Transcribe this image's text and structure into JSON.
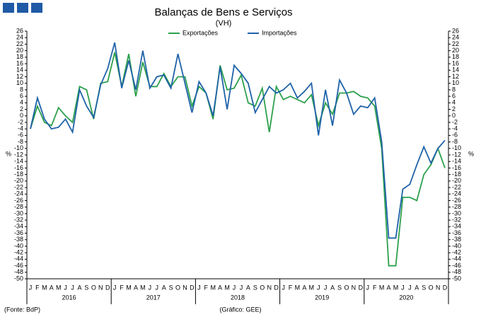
{
  "chart_data": {
    "type": "line",
    "title": "Balanças de Bens e Serviços",
    "subtitle": "(VH)",
    "ylabel": "%",
    "y2label": "%",
    "source": "(Fonte: BdP)",
    "credit": "(Gráfico: GEE)",
    "categories": [
      "J",
      "F",
      "M",
      "A",
      "M",
      "J",
      "J",
      "A",
      "S",
      "O",
      "N",
      "D",
      "J",
      "F",
      "M",
      "A",
      "M",
      "J",
      "J",
      "A",
      "S",
      "O",
      "N",
      "D",
      "J",
      "F",
      "M",
      "A",
      "M",
      "J",
      "J",
      "A",
      "S",
      "O",
      "N",
      "D",
      "J",
      "F",
      "M",
      "A",
      "M",
      "J",
      "J",
      "A",
      "S",
      "O",
      "N",
      "D",
      "J",
      "F",
      "M",
      "A",
      "M",
      "J",
      "J",
      "A",
      "S",
      "O",
      "N",
      "D"
    ],
    "year_labels": [
      "2016",
      "2017",
      "2018",
      "2019",
      "2020"
    ],
    "series": [
      {
        "name": "Exportações",
        "color": "#2ca04c",
        "values": [
          -4,
          3,
          -2,
          -3,
          2.5,
          0,
          -2,
          9,
          8,
          -1,
          10,
          10.5,
          19.5,
          9,
          19,
          6,
          16.5,
          9,
          9,
          13,
          9,
          12,
          12,
          3,
          9,
          7,
          -1,
          15.5,
          8,
          8.5,
          12.5,
          4,
          3,
          8.5,
          -5,
          9,
          5,
          6,
          5,
          4,
          6.5,
          -3,
          4,
          0.5,
          7,
          7,
          7.5,
          6,
          5.5,
          3,
          -10,
          -46,
          -46,
          -25,
          -25,
          -26,
          -18,
          -15,
          -10,
          -16
        ]
      },
      {
        "name": "Importações",
        "color": "#1f62a8",
        "values": [
          -4,
          5.5,
          -1,
          -4,
          -3.5,
          -1,
          -5,
          8,
          3,
          -0.5,
          9.5,
          14.5,
          22.5,
          8.5,
          17,
          8,
          20,
          8.5,
          12,
          12.5,
          8.5,
          19,
          10,
          1,
          10.5,
          7,
          0,
          15,
          2,
          15.5,
          13,
          10,
          1,
          5,
          9,
          7,
          8,
          10,
          5.5,
          7.5,
          10,
          -6,
          8,
          -3,
          11,
          7,
          0.5,
          3,
          2.5,
          5.5,
          -8,
          -37.5,
          -37.5,
          -22.5,
          -21,
          -15,
          -9.5,
          -14.5,
          -10,
          -7.5
        ]
      }
    ],
    "ylim": [
      -50,
      26
    ],
    "yticks": [
      -50,
      -48,
      -46,
      -44,
      -42,
      -40,
      -38,
      -36,
      -34,
      -32,
      -30,
      -28,
      -26,
      -24,
      -22,
      -20,
      -18,
      -16,
      -14,
      -12,
      -10,
      -8,
      -6,
      -4,
      -2,
      0,
      2,
      4,
      6,
      8,
      10,
      12,
      14,
      16,
      18,
      20,
      22,
      24,
      26
    ],
    "y2lim": [
      -50,
      26
    ],
    "y2ticks": [
      -50,
      -48,
      -46,
      -44,
      -42,
      -40,
      -38,
      -36,
      -34,
      -32,
      -30,
      -28,
      -26,
      -24,
      -22,
      -20,
      -18,
      -16,
      -14,
      -12,
      -10,
      -8,
      -6,
      -4,
      -2,
      0,
      2,
      4,
      6,
      8,
      10,
      12,
      14,
      16,
      18,
      20,
      22,
      24,
      26
    ]
  }
}
